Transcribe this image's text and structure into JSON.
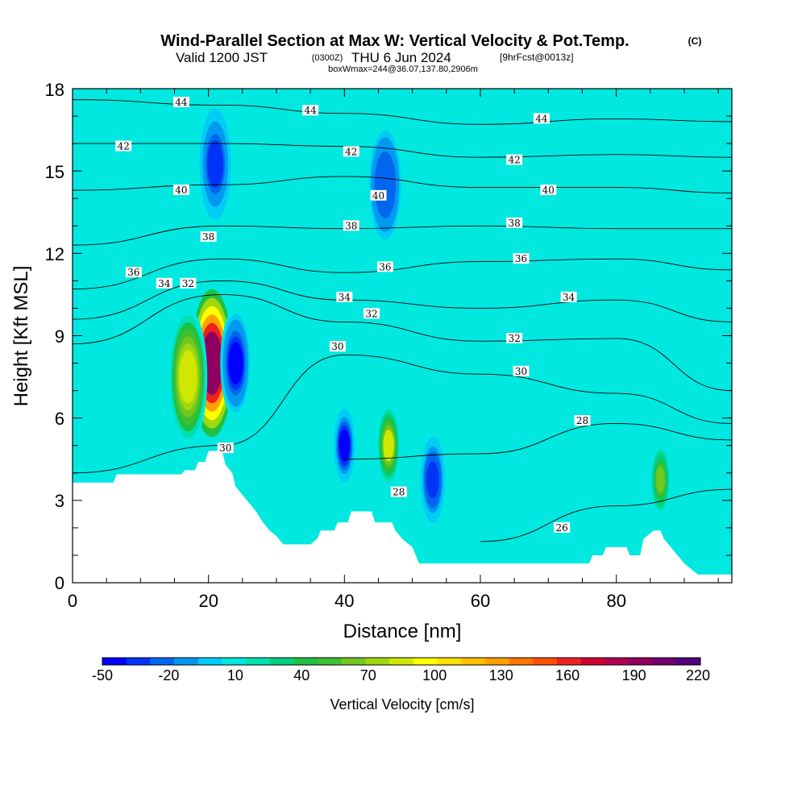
{
  "header": {
    "title": "Wind-Parallel Section at Max W: Vertical Velocity & Pot.Temp.",
    "title_tag": "(C)",
    "valid_prefix": "Valid 1200 JST",
    "valid_z": "(0300Z)",
    "valid_date": "THU 6 Jun 2024",
    "valid_fcst": "[9hrFcst@0013z]",
    "boxinfo": "boxWmax=244@36.07,137.80,2906m"
  },
  "axes": {
    "xlabel": "Distance [nm]",
    "ylabel": "Height [Kft MSL]",
    "xticks": [
      "0",
      "20",
      "40",
      "60",
      "80"
    ],
    "yticks": [
      "0",
      "3",
      "6",
      "9",
      "12",
      "15",
      "18"
    ]
  },
  "colorbar": {
    "label": "Vertical Velocity [cm/s]",
    "tick_labels": [
      "-50",
      "-20",
      "10",
      "40",
      "70",
      "100",
      "130",
      "160",
      "190",
      "220"
    ],
    "colors": [
      "#0000ff",
      "#0033f5",
      "#0066f0",
      "#0099f0",
      "#00ccf5",
      "#00e8e0",
      "#00e0b0",
      "#00d080",
      "#20c040",
      "#40c030",
      "#70c820",
      "#a0d810",
      "#d0e800",
      "#ffff00",
      "#ffe000",
      "#ffc000",
      "#ffa000",
      "#ff7800",
      "#ff5000",
      "#f02020",
      "#d00030",
      "#b00050",
      "#900060",
      "#700070",
      "#500080"
    ]
  },
  "chart_data": {
    "type": "heatmap",
    "title": "Wind-Parallel Section at Max W: Vertical Velocity & Pot.Temp.",
    "xlabel": "Distance [nm]",
    "ylabel": "Height [Kft MSL]",
    "xlim": [
      0,
      97
    ],
    "ylim": [
      0,
      18
    ],
    "background_value": 10,
    "vertical_velocity_features": [
      {
        "x": 20.5,
        "y_bottom": 5.0,
        "y_top": 11.0,
        "peak": 190
      },
      {
        "x": 17.0,
        "y_bottom": 5.0,
        "y_top": 10.0,
        "peak": 90
      },
      {
        "x": 46.5,
        "y_bottom": 3.5,
        "y_top": 6.5,
        "peak": 80
      },
      {
        "x": 86.5,
        "y_bottom": 2.5,
        "y_top": 5.0,
        "peak": 60
      },
      {
        "x": 24.0,
        "y_bottom": 6.0,
        "y_top": 10.0,
        "peak": -45
      },
      {
        "x": 40.0,
        "y_bottom": 3.5,
        "y_top": 6.5,
        "peak": -40
      },
      {
        "x": 53.0,
        "y_bottom": 2.0,
        "y_top": 5.5,
        "peak": -35
      },
      {
        "x": 21.0,
        "y_bottom": 13.0,
        "y_top": 17.5,
        "peak": -30
      },
      {
        "x": 46.0,
        "y_bottom": 12.0,
        "y_top": 17.0,
        "peak": -25
      }
    ],
    "theta_contours": {
      "levels": [
        26,
        28,
        30,
        32,
        34,
        36,
        38,
        40,
        42,
        44
      ],
      "heights_at_x": [
        {
          "x": 0,
          "heights": [
            null,
            null,
            4.0,
            8.7,
            9.6,
            10.7,
            12.3,
            14.3,
            16.0,
            17.6
          ]
        },
        {
          "x": 22,
          "heights": [
            null,
            null,
            5.0,
            10.5,
            11.0,
            11.8,
            13.0,
            14.5,
            16.0,
            17.4
          ]
        },
        {
          "x": 40,
          "heights": [
            null,
            4.5,
            8.3,
            9.5,
            10.3,
            11.3,
            12.9,
            14.8,
            15.9,
            17.1
          ]
        },
        {
          "x": 60,
          "heights": [
            1.5,
            4.7,
            7.6,
            8.8,
            10.0,
            11.7,
            13.0,
            14.4,
            15.5,
            16.7
          ]
        },
        {
          "x": 80,
          "heights": [
            2.8,
            5.8,
            6.9,
            8.9,
            10.3,
            11.8,
            12.9,
            14.4,
            15.6,
            16.9
          ]
        },
        {
          "x": 97,
          "heights": [
            3.4,
            5.2,
            5.8,
            7.0,
            9.5,
            11.4,
            12.9,
            14.2,
            15.5,
            16.8
          ]
        }
      ],
      "labels": [
        {
          "text": "44",
          "x": 16,
          "y": 17.5
        },
        {
          "text": "44",
          "x": 35,
          "y": 17.2
        },
        {
          "text": "44",
          "x": 69,
          "y": 16.9
        },
        {
          "text": "42",
          "x": 7.5,
          "y": 15.9
        },
        {
          "text": "42",
          "x": 41,
          "y": 15.7
        },
        {
          "text": "42",
          "x": 65,
          "y": 15.4
        },
        {
          "text": "40",
          "x": 16,
          "y": 14.3
        },
        {
          "text": "40",
          "x": 45,
          "y": 14.1
        },
        {
          "text": "40",
          "x": 70,
          "y": 14.3
        },
        {
          "text": "38",
          "x": 20,
          "y": 12.6
        },
        {
          "text": "38",
          "x": 41,
          "y": 13.0
        },
        {
          "text": "38",
          "x": 65,
          "y": 13.1
        },
        {
          "text": "36",
          "x": 9,
          "y": 11.3
        },
        {
          "text": "36",
          "x": 46,
          "y": 11.5
        },
        {
          "text": "36",
          "x": 66,
          "y": 11.8
        },
        {
          "text": "34",
          "x": 13.5,
          "y": 10.9
        },
        {
          "text": "34",
          "x": 40,
          "y": 10.4
        },
        {
          "text": "34",
          "x": 73,
          "y": 10.4
        },
        {
          "text": "32",
          "x": 17,
          "y": 10.9
        },
        {
          "text": "32",
          "x": 44,
          "y": 9.8
        },
        {
          "text": "32",
          "x": 65,
          "y": 8.9
        },
        {
          "text": "30",
          "x": 39,
          "y": 8.6
        },
        {
          "text": "30",
          "x": 66,
          "y": 7.7
        },
        {
          "text": "30",
          "x": 22.5,
          "y": 4.9
        },
        {
          "text": "28",
          "x": 75,
          "y": 5.9
        },
        {
          "text": "28",
          "x": 48,
          "y": 3.3
        },
        {
          "text": "26",
          "x": 72,
          "y": 2.0
        }
      ]
    },
    "terrain": [
      [
        0,
        3.65
      ],
      [
        6,
        3.65
      ],
      [
        6.5,
        3.95
      ],
      [
        16,
        3.95
      ],
      [
        16.5,
        4.1
      ],
      [
        18,
        4.1
      ],
      [
        18.5,
        4.4
      ],
      [
        19.5,
        4.4
      ],
      [
        20,
        4.8
      ],
      [
        22,
        4.8
      ],
      [
        22.5,
        4.3
      ],
      [
        23.5,
        4.0
      ],
      [
        24,
        3.5
      ],
      [
        25,
        3.2
      ],
      [
        26,
        2.9
      ],
      [
        27,
        2.6
      ],
      [
        28,
        2.2
      ],
      [
        29,
        1.9
      ],
      [
        30,
        1.7
      ],
      [
        31,
        1.4
      ],
      [
        33,
        1.4
      ],
      [
        35,
        1.4
      ],
      [
        36,
        1.6
      ],
      [
        36.5,
        1.9
      ],
      [
        38.5,
        1.9
      ],
      [
        39,
        2.2
      ],
      [
        40.5,
        2.2
      ],
      [
        41,
        2.6
      ],
      [
        44,
        2.6
      ],
      [
        44.5,
        2.2
      ],
      [
        47,
        2.2
      ],
      [
        47.5,
        1.9
      ],
      [
        48.5,
        1.6
      ],
      [
        50,
        1.3
      ],
      [
        50.5,
        1.0
      ],
      [
        51,
        0.7
      ],
      [
        56,
        0.7
      ],
      [
        62,
        0.7
      ],
      [
        70,
        0.7
      ],
      [
        76,
        0.7
      ],
      [
        76.5,
        1.0
      ],
      [
        78,
        1.0
      ],
      [
        78.5,
        1.3
      ],
      [
        81.5,
        1.3
      ],
      [
        82,
        1.0
      ],
      [
        83.5,
        1.0
      ],
      [
        84,
        1.6
      ],
      [
        85.5,
        1.9
      ],
      [
        86.5,
        1.9
      ],
      [
        87,
        1.6
      ],
      [
        88,
        1.3
      ],
      [
        89,
        1.0
      ],
      [
        90,
        0.7
      ],
      [
        92,
        0.3
      ],
      [
        97,
        0.3
      ]
    ]
  }
}
